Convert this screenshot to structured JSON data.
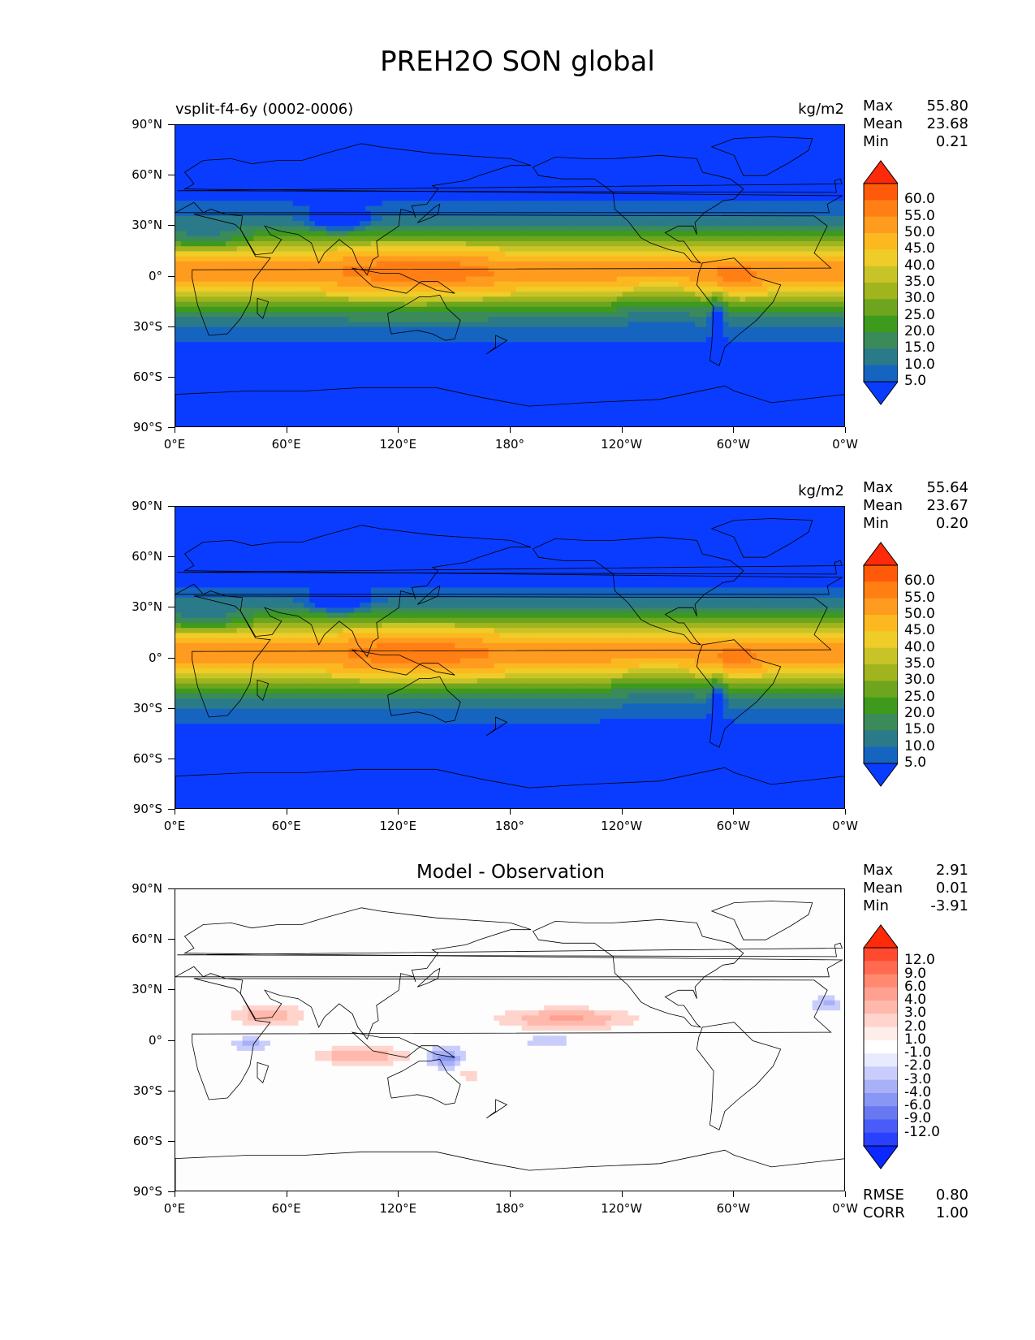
{
  "title": "PREH2O SON global",
  "lat_labels": [
    "90°N",
    "60°N",
    "30°N",
    "0°",
    "30°S",
    "60°S",
    "90°S"
  ],
  "lon_labels": [
    "0°E",
    "60°E",
    "120°E",
    "180°",
    "120°W",
    "60°W",
    "0°W"
  ],
  "panels": [
    {
      "subtitle": "vsplit-f4-6y (0002-0006)",
      "units": "kg/m2",
      "centre_title": "",
      "stats": [
        {
          "label": "Max",
          "value": "55.80"
        },
        {
          "label": "Mean",
          "value": "23.68"
        },
        {
          "label": "Min",
          "value": "0.21"
        }
      ],
      "colorbar_ticks": [
        "60.0",
        "55.0",
        "50.0",
        "45.0",
        "40.0",
        "35.0",
        "30.0",
        "25.0",
        "20.0",
        "15.0",
        "10.0",
        "5.0"
      ],
      "colorbar_colors": [
        "#ff2a0a",
        "#ff5a0a",
        "#ff7f14",
        "#ff9b1e",
        "#fbb91f",
        "#f0cc28",
        "#c8c428",
        "#a0b41e",
        "#6ea51e",
        "#3e9a1c",
        "#3a8a5a",
        "#2a7a8a",
        "#1564c0",
        "#0a3cff"
      ],
      "metrics": []
    },
    {
      "subtitle": "",
      "units": "kg/m2",
      "centre_title": "",
      "stats": [
        {
          "label": "Max",
          "value": "55.64"
        },
        {
          "label": "Mean",
          "value": "23.67"
        },
        {
          "label": "Min",
          "value": "0.20"
        }
      ],
      "colorbar_ticks": [
        "60.0",
        "55.0",
        "50.0",
        "45.0",
        "40.0",
        "35.0",
        "30.0",
        "25.0",
        "20.0",
        "15.0",
        "10.0",
        "5.0"
      ],
      "colorbar_colors": [
        "#ff2a0a",
        "#ff5a0a",
        "#ff7f14",
        "#ff9b1e",
        "#fbb91f",
        "#f0cc28",
        "#c8c428",
        "#a0b41e",
        "#6ea51e",
        "#3e9a1c",
        "#3a8a5a",
        "#2a7a8a",
        "#1564c0",
        "#0a3cff"
      ],
      "metrics": []
    },
    {
      "subtitle": "",
      "units": "",
      "centre_title": "Model - Observation",
      "stats": [
        {
          "label": "Max",
          "value": "2.91"
        },
        {
          "label": "Mean",
          "value": "0.01"
        },
        {
          "label": "Min",
          "value": "-3.91"
        }
      ],
      "colorbar_ticks": [
        "12.0",
        "9.0",
        "6.0",
        "4.0",
        "3.0",
        "2.0",
        "1.0",
        "-1.0",
        "-2.0",
        "-3.0",
        "-4.0",
        "-6.0",
        "-9.0",
        "-12.0"
      ],
      "colorbar_colors": [
        "#ff2a0a",
        "#ff4a30",
        "#ff6a50",
        "#ff8a70",
        "#ffa090",
        "#ffb8ac",
        "#ffd4cc",
        "#fdeeea",
        "#ffffff",
        "#e8eafe",
        "#c8cdfc",
        "#a8b0f8",
        "#8896f4",
        "#6878f0",
        "#4a5cf8",
        "#2a40ff",
        "#0a28ff"
      ],
      "metrics": [
        {
          "label": "RMSE",
          "value": "0.80"
        },
        {
          "label": "CORR",
          "value": "1.00"
        }
      ]
    }
  ],
  "chart_data": [
    {
      "type": "heatmap",
      "title": "PREH2O SON global",
      "subtitle": "vsplit-f4-6y (0002-0006)",
      "units": "kg/m2",
      "xlim": [
        0,
        360
      ],
      "ylim": [
        -90,
        90
      ],
      "levels": [
        5,
        10,
        15,
        20,
        25,
        30,
        35,
        40,
        45,
        50,
        55,
        60
      ],
      "max": 55.8,
      "mean": 23.68,
      "min": 0.21
    },
    {
      "type": "heatmap",
      "units": "kg/m2",
      "xlim": [
        0,
        360
      ],
      "ylim": [
        -90,
        90
      ],
      "levels": [
        5,
        10,
        15,
        20,
        25,
        30,
        35,
        40,
        45,
        50,
        55,
        60
      ],
      "max": 55.64,
      "mean": 23.67,
      "min": 0.2
    },
    {
      "type": "heatmap",
      "title": "Model - Observation",
      "xlim": [
        0,
        360
      ],
      "ylim": [
        -90,
        90
      ],
      "levels": [
        -12,
        -9,
        -6,
        -4,
        -3,
        -2,
        -1,
        1,
        2,
        3,
        4,
        6,
        9,
        12
      ],
      "max": 2.91,
      "mean": 0.01,
      "min": -3.91,
      "rmse": 0.8,
      "corr": 1.0
    }
  ]
}
